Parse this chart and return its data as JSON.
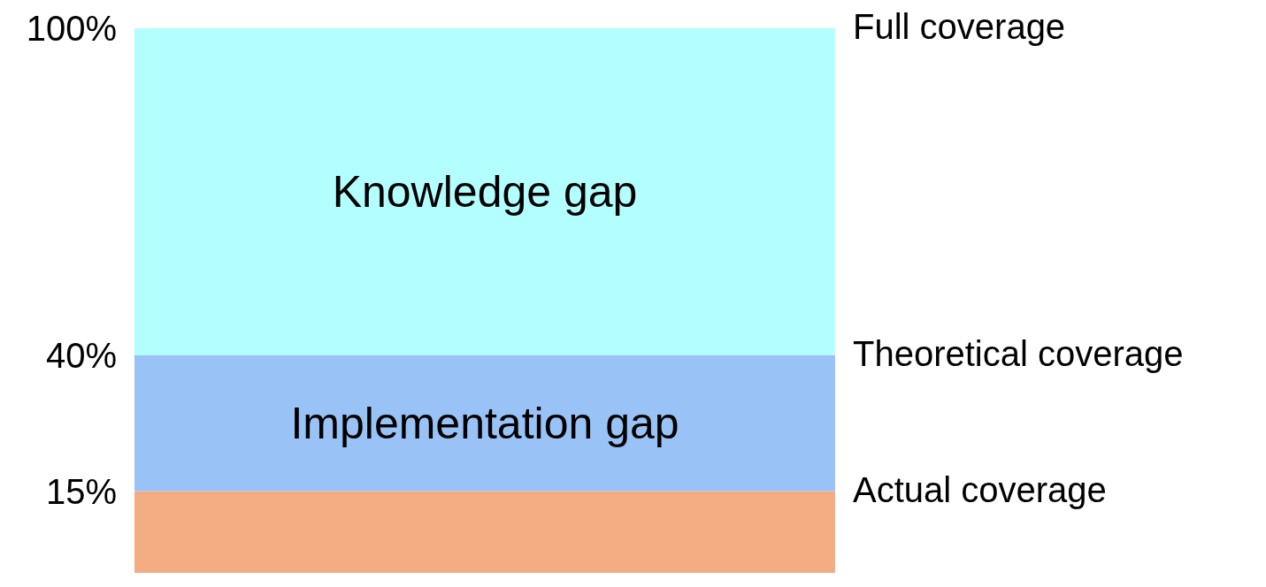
{
  "chart_data": {
    "type": "bar",
    "stacked": true,
    "categories": [
      null
    ],
    "series": [
      {
        "color": "#f4ac82",
        "values": [
          15
        ]
      },
      {
        "name": "Implementation gap",
        "color": "#99c3f7",
        "values": [
          25
        ]
      },
      {
        "name": "Knowledge gap",
        "color": "#b3ffff",
        "values": [
          60
        ]
      }
    ],
    "ylim": [
      0,
      100
    ],
    "yticks": [
      {
        "value": 15,
        "label": "15%"
      },
      {
        "value": 40,
        "label": "40%"
      },
      {
        "value": 100,
        "label": "100%"
      }
    ],
    "grid": false,
    "annotations": [
      "Full coverage",
      "Theoretical coverage",
      "Actual coverage"
    ]
  }
}
